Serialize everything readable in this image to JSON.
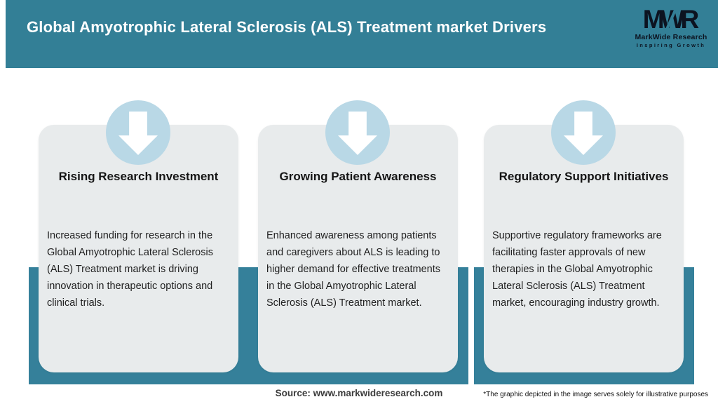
{
  "header": {
    "title": "Global Amyotrophic Lateral Sclerosis (ALS) Treatment market Drivers",
    "logo": {
      "monogram": "MWR",
      "name": "MarkWide Research",
      "tagline": "Inspiring Growth"
    }
  },
  "chart_data": {
    "type": "table",
    "title": "Global Amyotrophic Lateral Sclerosis (ALS) Treatment market Drivers",
    "categories": [
      "Rising Research Investment",
      "Growing Patient Awareness",
      "Regulatory Support Initiatives"
    ],
    "values": [
      "Increased funding for research in the Global Amyotrophic Lateral Sclerosis (ALS) Treatment market is driving innovation in therapeutic options and clinical trials.",
      "Enhanced awareness among patients and caregivers about ALS is leading to higher demand for effective treatments in the Global Amyotrophic Lateral Sclerosis (ALS) Treatment market.",
      "Supportive regulatory frameworks are facilitating faster approvals of new therapies in the Global Amyotrophic Lateral Sclerosis (ALS) Treatment market, encouraging industry growth."
    ]
  },
  "cards": [
    {
      "icon": "down-arrow-icon",
      "title": "Rising Research Investment",
      "body": "Increased funding for research in the Global Amyotrophic Lateral Sclerosis (ALS) Treatment market is driving innovation in therapeutic options and clinical trials."
    },
    {
      "icon": "down-arrow-icon",
      "title": "Growing Patient Awareness",
      "body": "Enhanced awareness among patients and caregivers about ALS is leading to higher demand for effective treatments in the Global Amyotrophic Lateral Sclerosis (ALS) Treatment market."
    },
    {
      "icon": "down-arrow-icon",
      "title": "Regulatory Support Initiatives",
      "body": "Supportive regulatory frameworks are facilitating faster approvals of new therapies in the Global Amyotrophic Lateral Sclerosis (ALS) Treatment market, encouraging industry growth."
    }
  ],
  "footer": {
    "source": "Source: www.markwideresearch.com",
    "disclaimer": "*The graphic depicted in the image serves solely for illustrative purposes"
  },
  "colors": {
    "teal": "#337f96",
    "circle_blue": "#b9d8e6",
    "card_gray": "#e8ebec",
    "logo_ink": "#0c1320"
  }
}
